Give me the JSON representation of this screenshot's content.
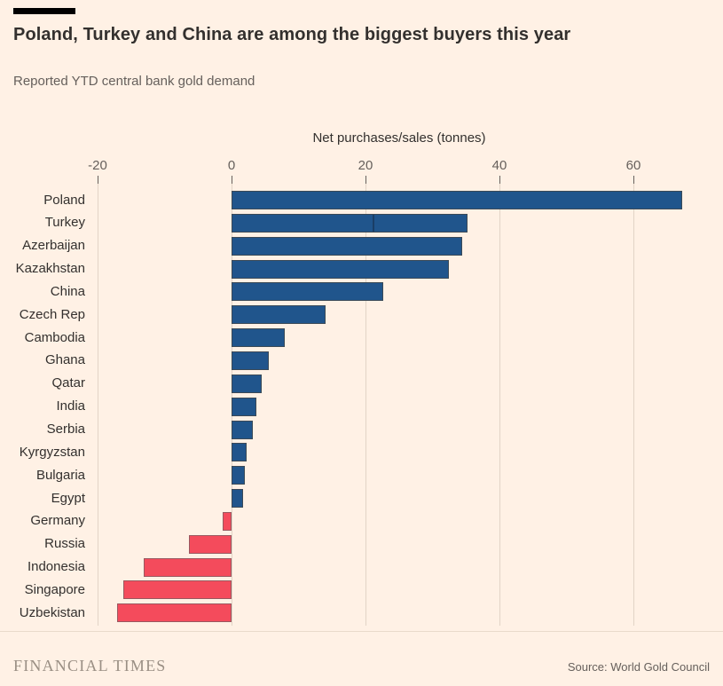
{
  "header": {
    "title": "Poland, Turkey and China are among the biggest buyers this year",
    "subtitle": "Reported YTD central bank gold demand"
  },
  "chart_data": {
    "type": "bar",
    "orientation": "horizontal",
    "xlabel": "Net purchases/sales (tonnes)",
    "xlim": [
      -20,
      68
    ],
    "ticks": [
      -20,
      0,
      20,
      40,
      60
    ],
    "grid": true,
    "categories": [
      "Poland",
      "Turkey",
      "Azerbaijan",
      "Kazakhstan",
      "China",
      "Czech Rep",
      "Cambodia",
      "Ghana",
      "Qatar",
      "India",
      "Serbia",
      "Kyrgyzstan",
      "Bulgaria",
      "Egypt",
      "Germany",
      "Russia",
      "Indonesia",
      "Singapore",
      "Uzbekistan"
    ],
    "values": [
      67.3,
      35.2,
      34.5,
      32.4,
      22.7,
      14.1,
      7.9,
      5.6,
      4.5,
      3.7,
      3.2,
      2.2,
      2.0,
      1.7,
      -1.3,
      -6.3,
      -13.1,
      -16.2,
      -17.1
    ],
    "annotations": [
      {
        "target": "Turkey",
        "type": "segment-divider",
        "value": 21.2
      }
    ],
    "colors": {
      "positive_fill": "#20558C",
      "positive_border": "#3B4A57",
      "negative_fill": "#F44B5C",
      "negative_border": "#99585F",
      "gridline": "#E2D4C6",
      "tick": "#66605C",
      "background": "#FFF1E5"
    }
  },
  "footer": {
    "brand": "FINANCIAL TIMES",
    "source": "Source: World Gold Council"
  }
}
